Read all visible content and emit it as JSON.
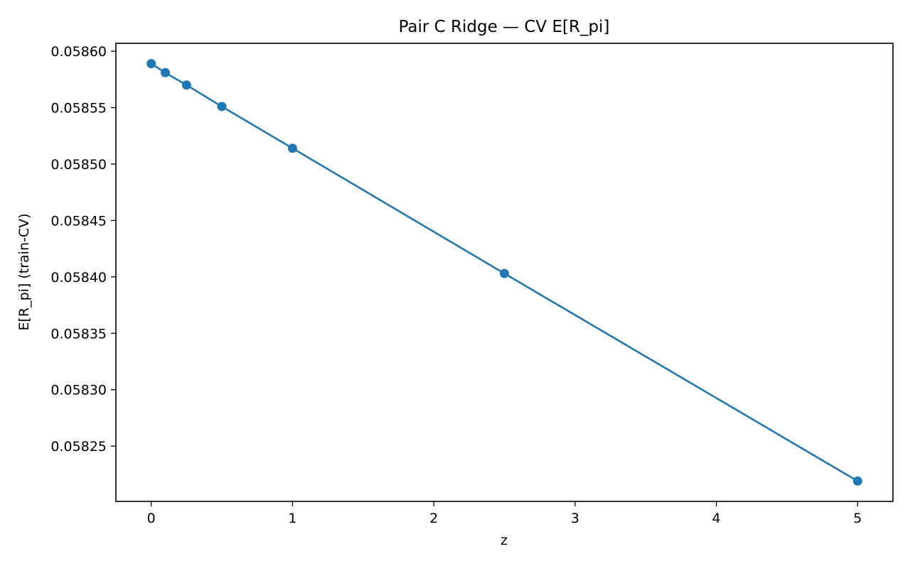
{
  "chart_data": {
    "type": "line",
    "title": "Pair C Ridge — CV E[R_pi]",
    "xlabel": "z",
    "ylabel": "E[R_pi] (train-CV)",
    "x": [
      0,
      0.1,
      0.25,
      0.5,
      1,
      2.5,
      5
    ],
    "series": [
      {
        "values": [
          0.058589,
          0.058581,
          0.05857,
          0.058551,
          0.058514,
          0.058403,
          0.058219
        ],
        "color": "#1f77b4",
        "marker": "circle"
      }
    ],
    "xlim": [
      -0.25,
      5.25
    ],
    "ylim": [
      0.058201,
      0.058607
    ],
    "xticks": [
      0,
      1,
      2,
      3,
      4,
      5
    ],
    "xtick_labels": [
      "0",
      "1",
      "2",
      "3",
      "4",
      "5"
    ],
    "yticks": [
      0.05825,
      0.0583,
      0.05835,
      0.0584,
      0.05845,
      0.0585,
      0.05855,
      0.0586
    ],
    "ytick_labels": [
      "0.05825",
      "0.05830",
      "0.05835",
      "0.05840",
      "0.05845",
      "0.05850",
      "0.05855",
      "0.05860"
    ],
    "grid": false,
    "legend": "none"
  }
}
